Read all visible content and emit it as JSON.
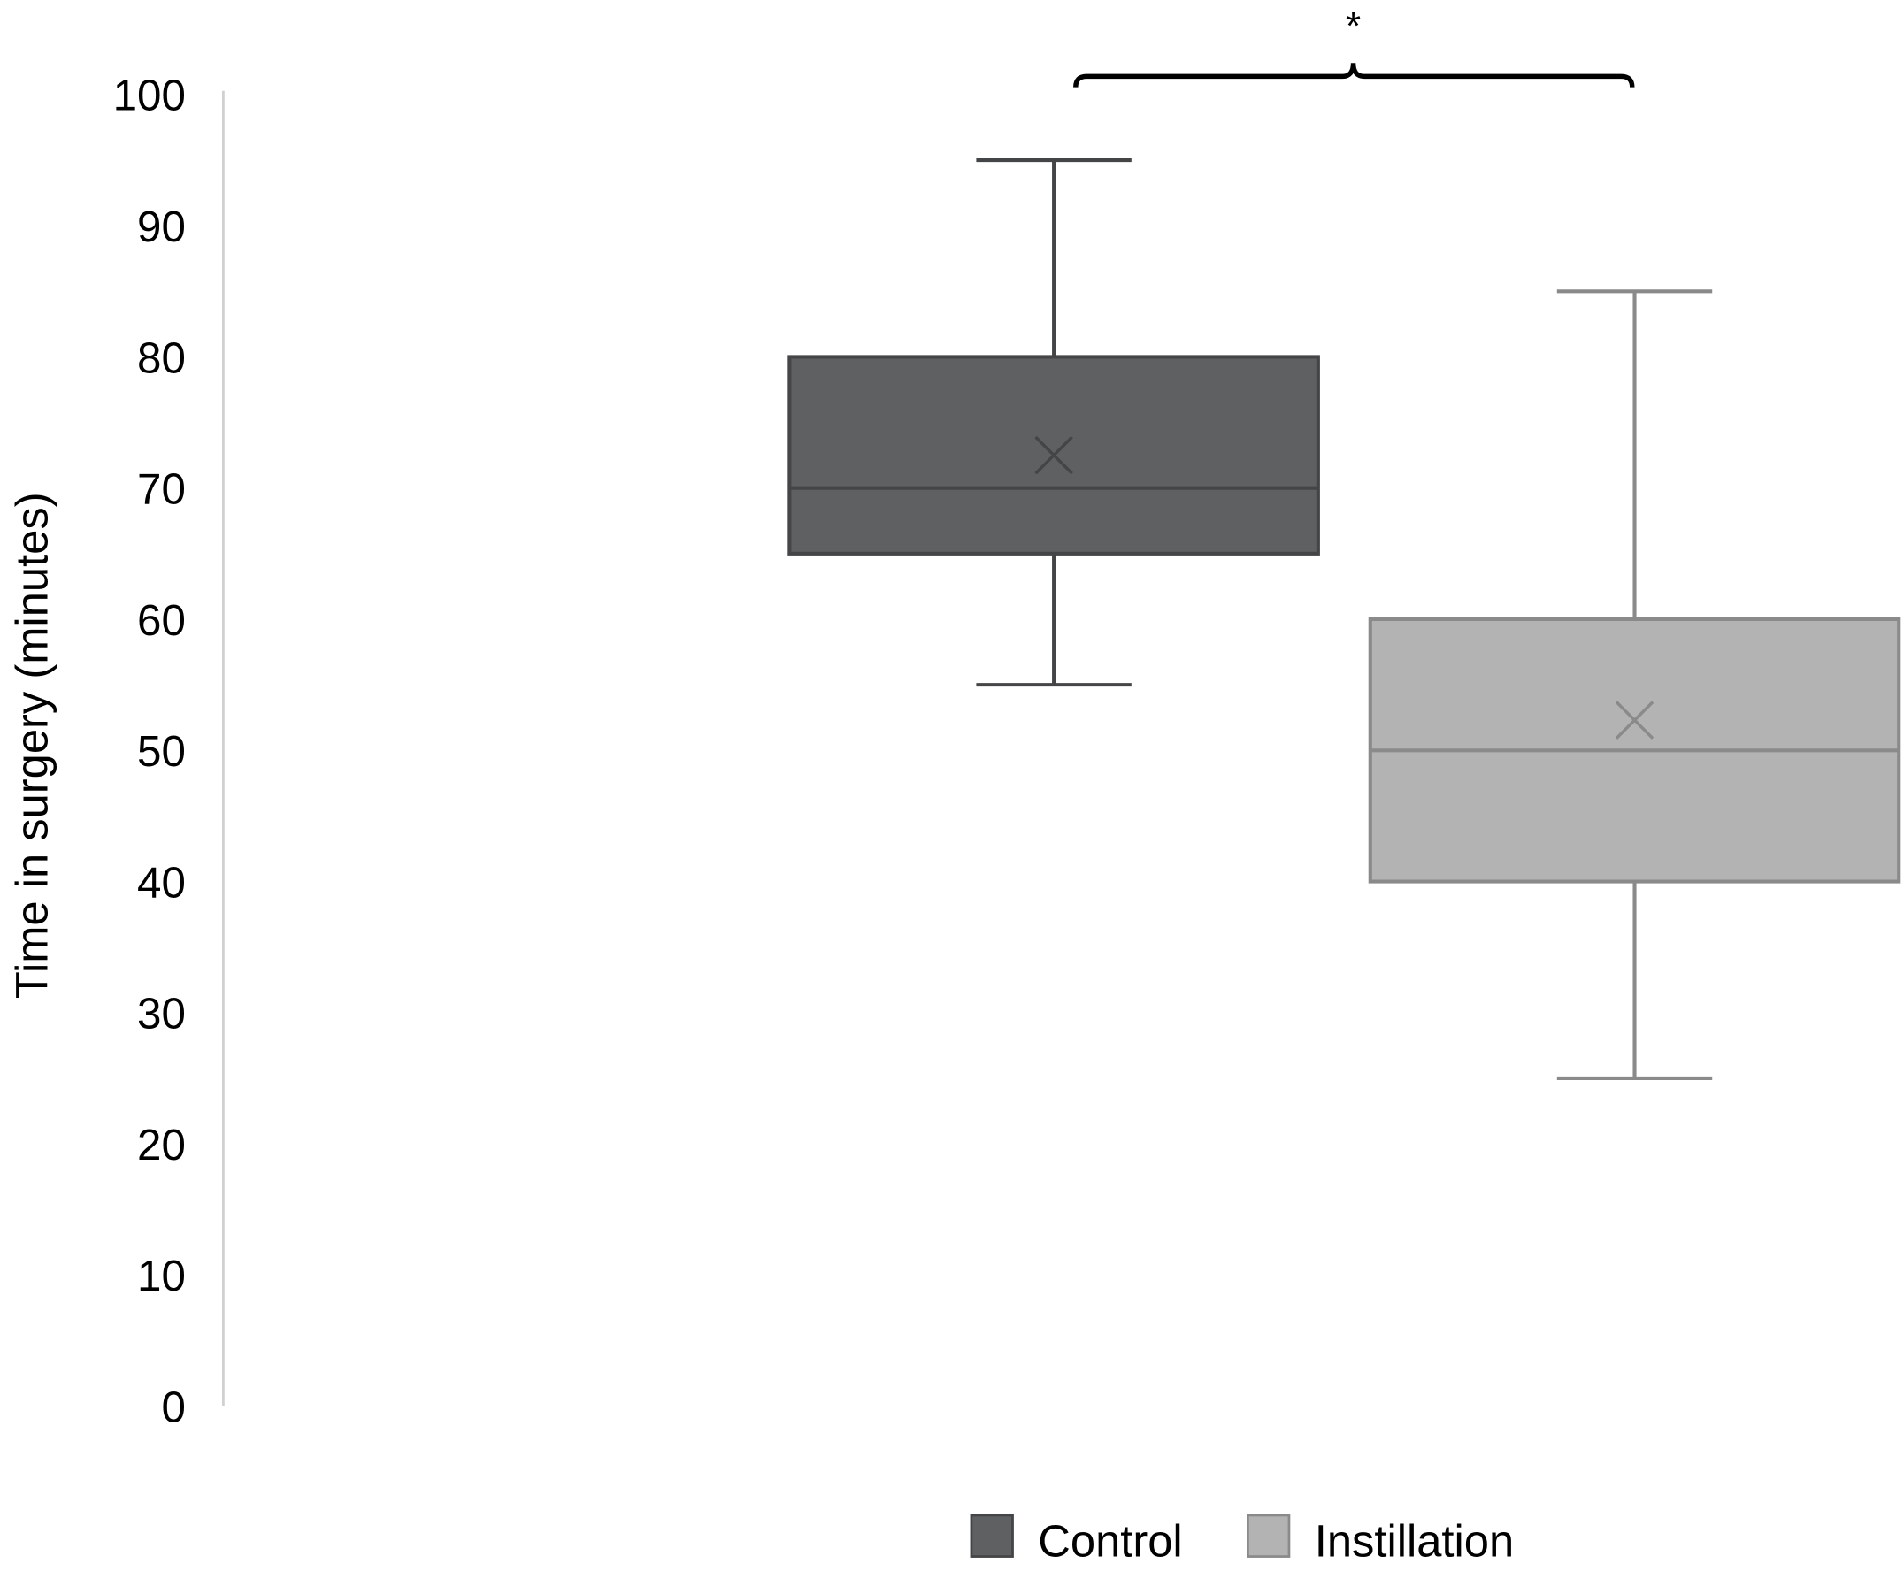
{
  "chart_data": {
    "type": "box",
    "ylabel": "Time in surgery (minutes)",
    "ylim": [
      0,
      100
    ],
    "yticks": [
      0,
      10,
      20,
      30,
      40,
      50,
      60,
      70,
      80,
      90,
      100
    ],
    "grid": false,
    "legend_placement": "bottom",
    "series": [
      {
        "name": "Control",
        "color": "#5f6062",
        "line_color": "#444546",
        "min": 55,
        "q1": 65,
        "median": 70,
        "mean": 72.5,
        "q3": 80,
        "max": 95
      },
      {
        "name": "Instillation",
        "color": "#b3b3b3",
        "line_color": "#8a8a8a",
        "min": 25,
        "q1": 40,
        "median": 50,
        "mean": 52.3,
        "q3": 60,
        "max": 85
      }
    ],
    "annotations": [
      {
        "type": "significance-bracket",
        "between": [
          "Control",
          "Instillation"
        ],
        "label": "*"
      }
    ]
  }
}
